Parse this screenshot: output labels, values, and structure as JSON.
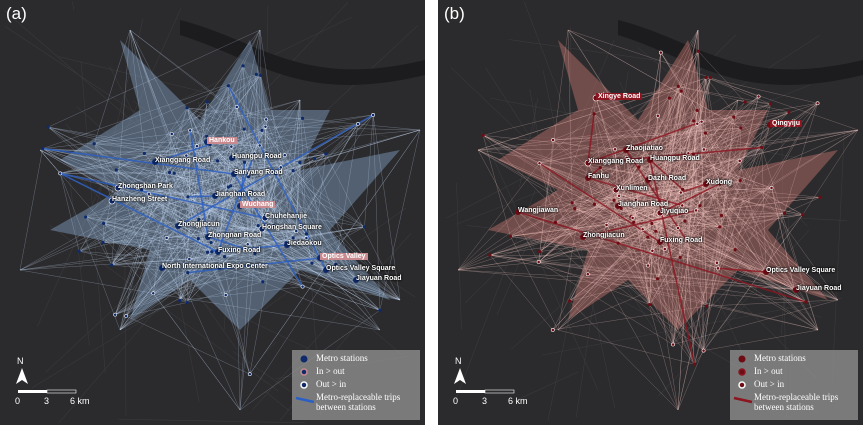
{
  "panels": [
    {
      "label": "(a)",
      "stations": [
        "Hankou",
        "Xianggang Road",
        "Huangpu Road",
        "Sanyang Road",
        "Zhongshan Park",
        "Jianghan Road",
        "Hanzheng Street",
        "Wuchang",
        "Zhongjiacun",
        "Chuhehanjie",
        "Hongshan Square",
        "Zhongnan Road",
        "Fuxing Road",
        "Jiedaokou",
        "North International Expo Center",
        "Optics Valley",
        "Optics Valley Square",
        "Jiayuan Road"
      ],
      "legend": [
        "Metro stations",
        "In > out",
        "Out > in",
        "Metro-replaceable trips between stations"
      ],
      "north": "N",
      "scale": [
        "0",
        "3",
        "6 km"
      ]
    },
    {
      "label": "(b)",
      "stations": [
        "Xingye Road",
        "Qingyiju",
        "Zhaojiatiao",
        "Xianggang Road",
        "Huangpu Road",
        "Fanhu",
        "Xunlimen",
        "Dazhi Road",
        "Xudong",
        "Jianghan Road",
        "Wangjiawan",
        "Jiyuqiao",
        "Zhongjiacun",
        "Fuxing Road",
        "Optics Valley Square",
        "Jiayuan Road"
      ],
      "legend": [
        "Metro stations",
        "In > out",
        "Out > in",
        "Metro-replaceable trips between stations"
      ],
      "north": "N",
      "scale": [
        "0",
        "3",
        "6 km"
      ]
    }
  ]
}
